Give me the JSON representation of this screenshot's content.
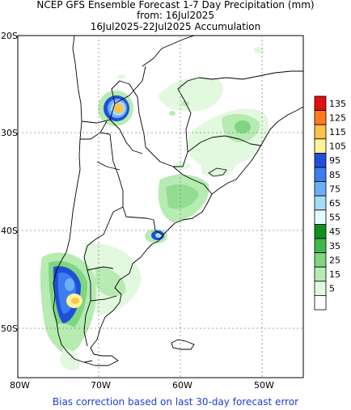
{
  "header": {
    "line1": "NCEP GFS Ensemble Forecast 1-7 Day Precipitation (mm)",
    "line2": "from: 16Jul2025",
    "line3": "16Jul2025-22Jul2025 Accumulation"
  },
  "axes": {
    "lat_labels": [
      "20S",
      "30S",
      "40S",
      "50S"
    ],
    "lon_labels": [
      "80W",
      "70W",
      "60W",
      "50W"
    ]
  },
  "legend": {
    "bins": [
      {
        "label": "135",
        "color": "#e01010"
      },
      {
        "label": "125",
        "color": "#ff7a1a"
      },
      {
        "label": "115",
        "color": "#ffc24a"
      },
      {
        "label": "105",
        "color": "#fff29a"
      },
      {
        "label": "95",
        "color": "#1f4fd8"
      },
      {
        "label": "85",
        "color": "#3c7df0"
      },
      {
        "label": "75",
        "color": "#6ab0f7"
      },
      {
        "label": "65",
        "color": "#a5dcfb"
      },
      {
        "label": "55",
        "color": "#e6fbff"
      },
      {
        "label": "45",
        "color": "#11901e"
      },
      {
        "label": "35",
        "color": "#3fb84a"
      },
      {
        "label": "25",
        "color": "#7fd67f"
      },
      {
        "label": "15",
        "color": "#b6ebb2"
      },
      {
        "label": "5",
        "color": "#e2f8df"
      },
      {
        "label": "",
        "color": "#ffffff"
      }
    ]
  },
  "footer": {
    "note": "Bias correction based on last 30-day forecast error"
  }
}
